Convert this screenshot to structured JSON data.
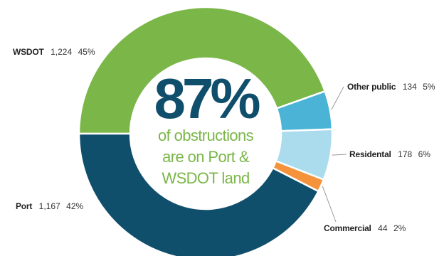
{
  "chart_data": {
    "type": "pie",
    "style": "donut",
    "title": "",
    "highlight": {
      "value": "87%",
      "caption_lines": [
        "of obstructions",
        "are on Port &",
        "WSDOT land"
      ]
    },
    "slices": [
      {
        "name": "WSDOT",
        "value": 1224,
        "percent": "45%",
        "color": "#7ab648"
      },
      {
        "name": "Other public",
        "value": 134,
        "percent": "5%",
        "color": "#4ab3d6"
      },
      {
        "name": "Residental",
        "value": 178,
        "percent": "6%",
        "color": "#aadcee"
      },
      {
        "name": "Commercial",
        "value": 44,
        "percent": "2%",
        "color": "#f4933b"
      },
      {
        "name": "Port",
        "value": 1167,
        "percent": "42%",
        "color": "#0f4f6b"
      }
    ],
    "value_labels": [
      "1,224",
      "134",
      "178",
      "44",
      "1,167"
    ],
    "colors": {
      "big_number": "#0f4f6b",
      "caption": "#7ab648",
      "leader_line": "#9a9a9a"
    }
  }
}
